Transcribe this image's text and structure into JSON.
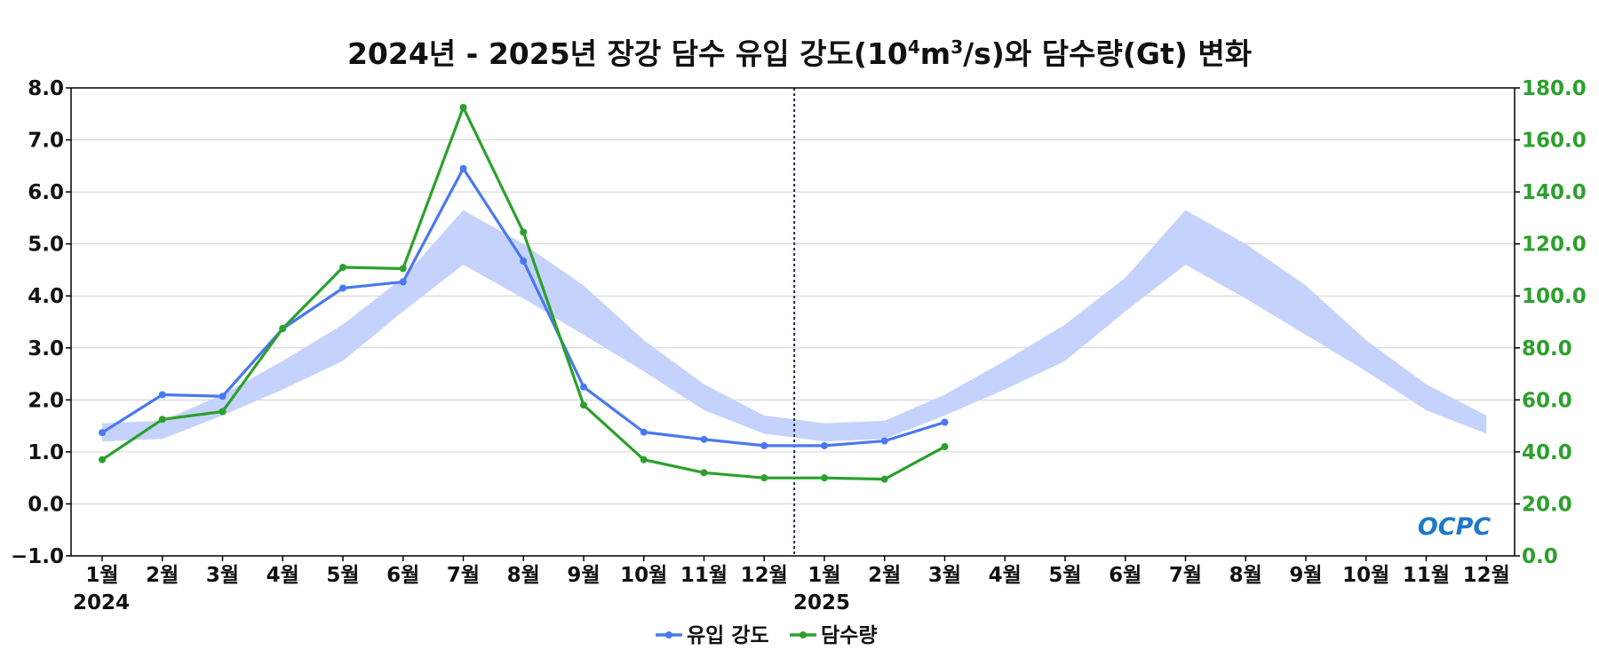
{
  "chart_data": {
    "type": "line",
    "title": "2024년 - 2025년 장강 담수 유입 강도(10⁴m³/s)와 담수량(Gt) 변화",
    "title_parts": {
      "prefix": "2024년 - 2025년 장강 담수 유입 강도(10",
      "exp1": "4",
      "mid": "m",
      "exp2": "3",
      "suffix": "/s)와 담수량(Gt) 변화"
    },
    "x_labels": [
      "1월",
      "2월",
      "3월",
      "4월",
      "5월",
      "6월",
      "7월",
      "8월",
      "9월",
      "10월",
      "11월",
      "12월",
      "1월",
      "2월",
      "3월",
      "4월",
      "5월",
      "6월",
      "7월",
      "8월",
      "9월",
      "10월",
      "11월",
      "12월"
    ],
    "year_labels": [
      "2024",
      "2025"
    ],
    "y_left": {
      "lim": [
        -1.0,
        8.0
      ],
      "ticks": [
        "−1.0",
        "0.0",
        "1.0",
        "2.0",
        "3.0",
        "4.0",
        "5.0",
        "6.0",
        "7.0",
        "8.0"
      ],
      "tick_values": [
        -1,
        0,
        1,
        2,
        3,
        4,
        5,
        6,
        7,
        8
      ]
    },
    "y_right": {
      "lim": [
        0.0,
        180.0
      ],
      "ticks": [
        "0.0",
        "20.0",
        "40.0",
        "60.0",
        "80.0",
        "100.0",
        "120.0",
        "140.0",
        "160.0",
        "180.0"
      ],
      "tick_values": [
        0,
        20,
        40,
        60,
        80,
        100,
        120,
        140,
        160,
        180
      ],
      "color": "#2ca02c"
    },
    "grid": true,
    "year_divider_after_index": 11.5,
    "climatology_band": {
      "axis": "left",
      "color": "#c5d3fc",
      "lower": [
        1.2,
        1.25,
        1.7,
        2.2,
        2.75,
        3.7,
        4.6,
        3.95,
        3.25,
        2.55,
        1.8,
        1.35,
        1.2,
        1.25,
        1.7,
        2.2,
        2.75,
        3.7,
        4.6,
        3.95,
        3.25,
        2.55,
        1.8,
        1.35
      ],
      "upper": [
        1.55,
        1.6,
        2.1,
        2.75,
        3.45,
        4.35,
        5.65,
        5.0,
        4.2,
        3.15,
        2.3,
        1.7,
        1.55,
        1.6,
        2.1,
        2.75,
        3.45,
        4.35,
        5.65,
        5.0,
        4.2,
        3.15,
        2.3,
        1.7
      ]
    },
    "series": [
      {
        "name": "유입 강도",
        "axis": "left",
        "color": "#4a78f0",
        "values": [
          1.37,
          2.1,
          2.07,
          3.37,
          4.15,
          4.27,
          6.45,
          4.67,
          2.25,
          1.38,
          1.24,
          1.12,
          1.12,
          1.21,
          1.57
        ]
      },
      {
        "name": "담수량",
        "axis": "right",
        "color": "#2ca02c",
        "values": [
          37.0,
          52.5,
          55.5,
          87.5,
          111.0,
          110.5,
          172.5,
          124.5,
          58.0,
          37.0,
          32.0,
          30.0,
          30.0,
          29.5,
          42.0
        ]
      }
    ],
    "legend": {
      "placement": "bottom-center"
    }
  },
  "logo": {
    "text": "OCPC"
  }
}
